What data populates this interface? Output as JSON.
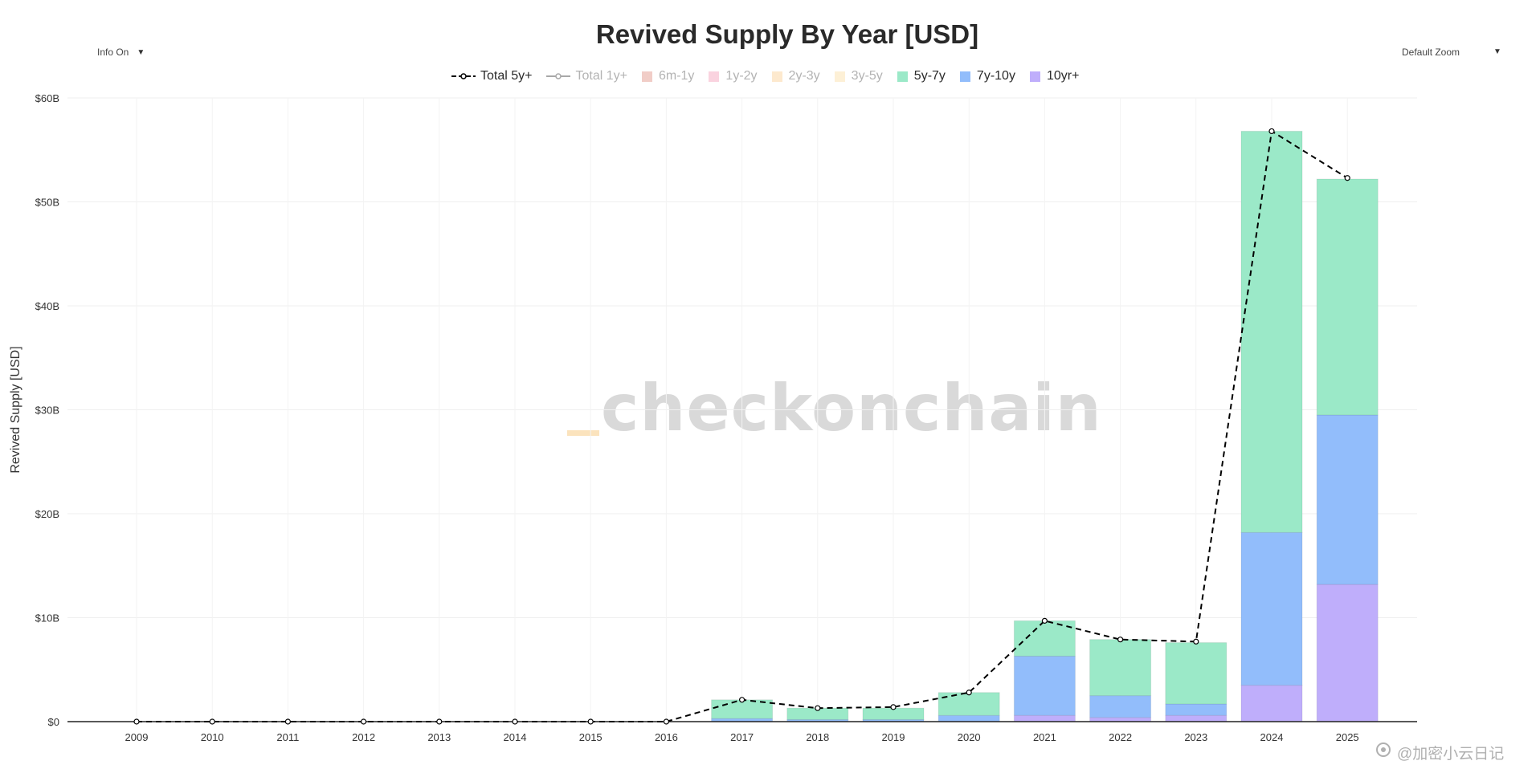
{
  "title": "Revived Supply By Year [USD]",
  "info_dropdown": {
    "label": "Info On",
    "caret": "▼"
  },
  "zoom_dropdown": {
    "label": "Default Zoom",
    "caret": "▼"
  },
  "watermark": "checkonchain",
  "credit": {
    "icon": "bilibili-like-icon",
    "text": "@加密小云日记"
  },
  "colors": {
    "5y-7y": "#9be9c8",
    "7y-10y": "#92bdfb",
    "10yr+": "#bfaefb",
    "6m-1y": "#eec1b9",
    "1y-2y": "#f9c8d7",
    "2y-3y": "#fde3c2",
    "3y-5y": "#fdeccc",
    "total_5y": "#000000",
    "total_1y": "#9a9a9a"
  },
  "legend": [
    {
      "name": "Total 5y+",
      "kind": "line-dash",
      "state": "on",
      "color_key": "total_5y"
    },
    {
      "name": "Total 1y+",
      "kind": "line-solid",
      "state": "off",
      "color_key": "total_1y"
    },
    {
      "name": "6m-1y",
      "kind": "box",
      "state": "off",
      "color_key": "6m-1y"
    },
    {
      "name": "1y-2y",
      "kind": "box",
      "state": "off",
      "color_key": "1y-2y"
    },
    {
      "name": "2y-3y",
      "kind": "box",
      "state": "off",
      "color_key": "2y-3y"
    },
    {
      "name": "3y-5y",
      "kind": "box",
      "state": "off",
      "color_key": "3y-5y"
    },
    {
      "name": "5y-7y",
      "kind": "box",
      "state": "on",
      "color_key": "5y-7y"
    },
    {
      "name": "7y-10y",
      "kind": "box",
      "state": "on",
      "color_key": "7y-10y"
    },
    {
      "name": "10yr+",
      "kind": "box",
      "state": "on",
      "color_key": "10yr+"
    }
  ],
  "chart_data": {
    "type": "bar",
    "stacked": true,
    "title": "Revived Supply By Year [USD]",
    "ylabel": "Revived Supply [USD]",
    "xlabel": "",
    "ylim": [
      0,
      60
    ],
    "yunit": "B",
    "yticks": [
      0,
      10,
      20,
      30,
      40,
      50,
      60
    ],
    "ytick_labels": [
      "$0",
      "$10B",
      "$20B",
      "$30B",
      "$40B",
      "$50B",
      "$60B"
    ],
    "categories": [
      "2009",
      "2010",
      "2011",
      "2012",
      "2013",
      "2014",
      "2015",
      "2016",
      "2017",
      "2018",
      "2019",
      "2020",
      "2021",
      "2022",
      "2023",
      "2024",
      "2025"
    ],
    "series": [
      {
        "name": "10yr+",
        "color_key": "10yr+",
        "values": [
          0,
          0,
          0,
          0,
          0,
          0,
          0,
          0,
          0,
          0,
          0,
          0,
          0.6,
          0.4,
          0.6,
          3.5,
          13.2
        ]
      },
      {
        "name": "7y-10y",
        "color_key": "7y-10y",
        "values": [
          0,
          0,
          0,
          0,
          0,
          0,
          0,
          0,
          0.3,
          0.2,
          0.2,
          0.6,
          5.7,
          2.1,
          1.1,
          14.7,
          16.3
        ]
      },
      {
        "name": "5y-7y",
        "color_key": "5y-7y",
        "values": [
          0,
          0,
          0,
          0,
          0,
          0,
          0,
          0,
          1.8,
          1.1,
          1.1,
          2.2,
          3.4,
          5.4,
          5.9,
          38.6,
          22.7
        ]
      }
    ],
    "line_series": [
      {
        "name": "Total 5y+",
        "style": "dash",
        "color_key": "total_5y",
        "values": [
          0,
          0,
          0,
          0,
          0,
          0,
          0,
          0,
          2.1,
          1.3,
          1.4,
          2.8,
          9.7,
          7.9,
          7.7,
          56.8,
          52.3
        ]
      }
    ]
  }
}
